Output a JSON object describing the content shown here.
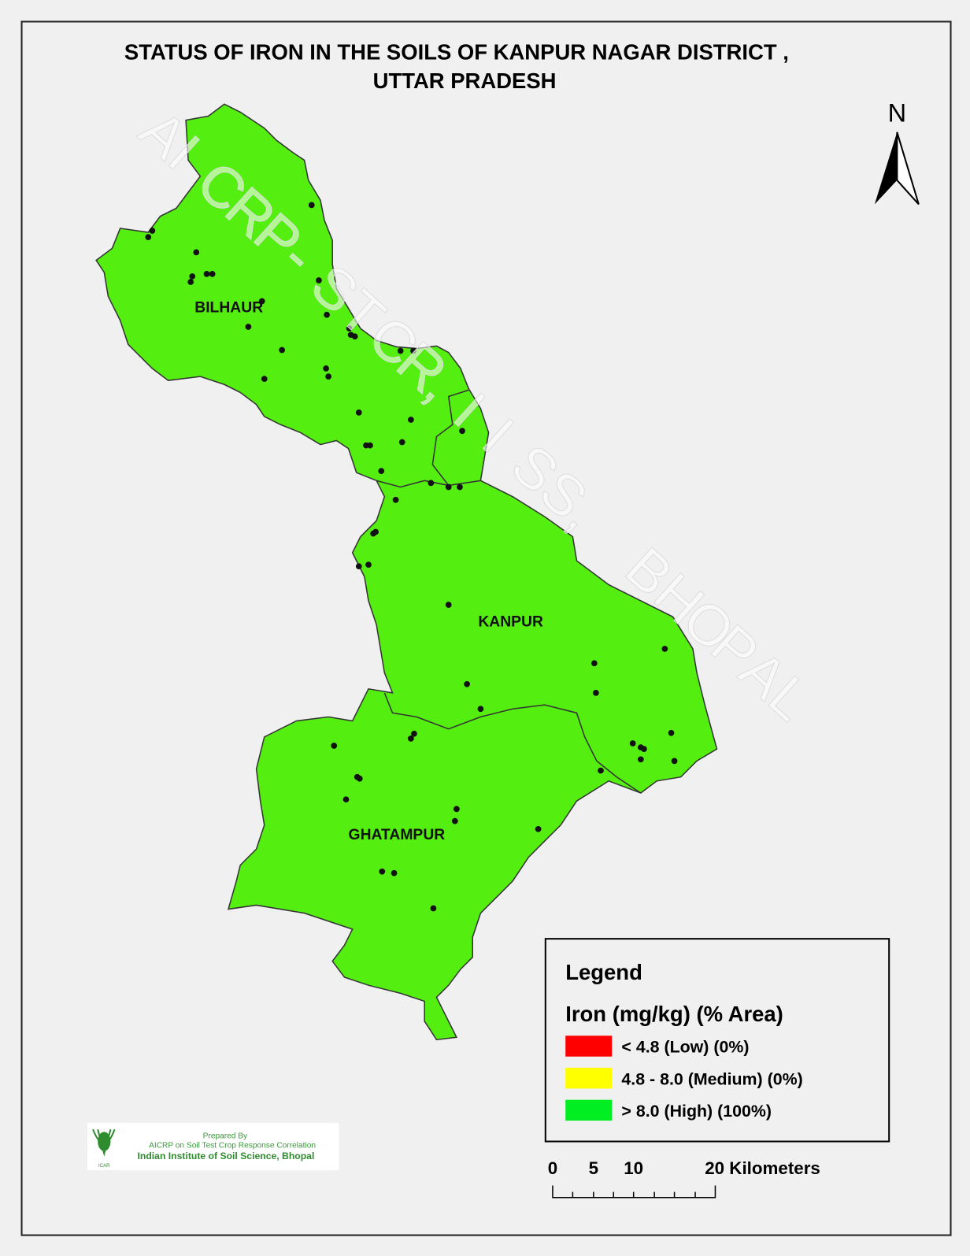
{
  "title_line1": "STATUS OF IRON IN THE SOILS OF KANPUR NAGAR DISTRICT ,",
  "title_line2": "UTTAR PRADESH",
  "north_label": "N",
  "watermark": "AICRP-STCR,IISS, BHOPAL",
  "regions": [
    {
      "name": "BILHAUR"
    },
    {
      "name": "KANPUR"
    },
    {
      "name": "GHATAMPUR"
    }
  ],
  "colors": {
    "map_fill": "#55ee11",
    "low": "#ff0000",
    "medium": "#ffff00",
    "high": "#00ee22",
    "background": "#f0f0f0"
  },
  "legend": {
    "title": "Legend",
    "subtitle": "Iron  (mg/kg) (% Area)",
    "items": [
      {
        "label": "< 4.8 (Low) (0%)",
        "color": "#ff0000",
        "percent_area": 0
      },
      {
        "label": "4.8 - 8.0 (Medium) (0%)",
        "color": "#ffff00",
        "percent_area": 0
      },
      {
        "label": "> 8.0 (High) (100%)",
        "color": "#00ee22",
        "percent_area": 100
      }
    ]
  },
  "scale_bar": {
    "labels": [
      "0",
      "5",
      "10",
      "20 Kilometers"
    ]
  },
  "credit": {
    "line1": "Prepared By",
    "line2": "AICRP on Soil Test Crop Response Correlation",
    "line3": "Indian Institute of Soil Science, Bhopal",
    "logo_text": "ICAR"
  }
}
